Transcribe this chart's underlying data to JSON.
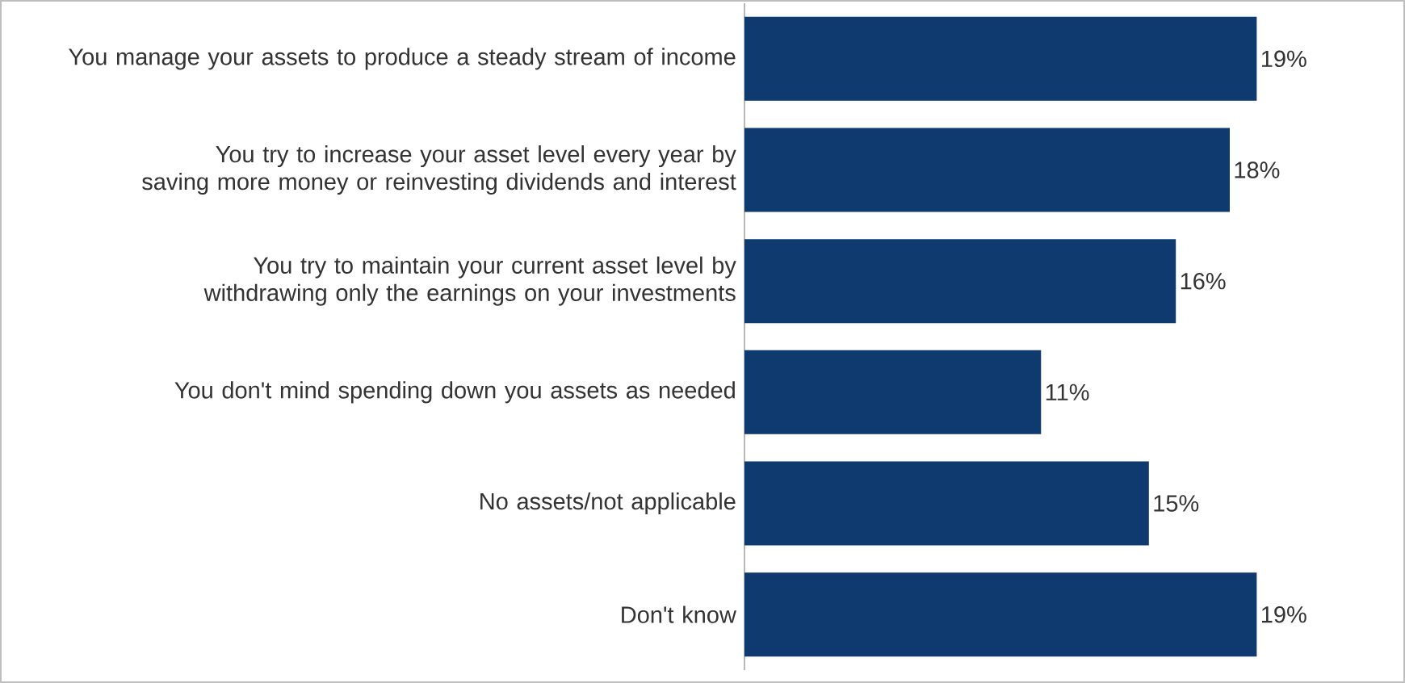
{
  "chart_data": {
    "type": "bar",
    "orientation": "horizontal",
    "categories": [
      "You manage your assets to produce a steady stream of income",
      "You try to increase your asset level every year by saving more money or reinvesting dividends and interest",
      "You try to maintain your current asset level by withdrawing only the earnings on your investments",
      "You don't mind spending down you assets as needed",
      "No assets/not applicable",
      "Don't know"
    ],
    "values": [
      19,
      18,
      16,
      11,
      15,
      19
    ],
    "value_labels": [
      "19%",
      "18%",
      "16%",
      "11%",
      "15%",
      "19%"
    ],
    "color": "#0e3a6f",
    "xlim": [
      0,
      24.5
    ]
  }
}
